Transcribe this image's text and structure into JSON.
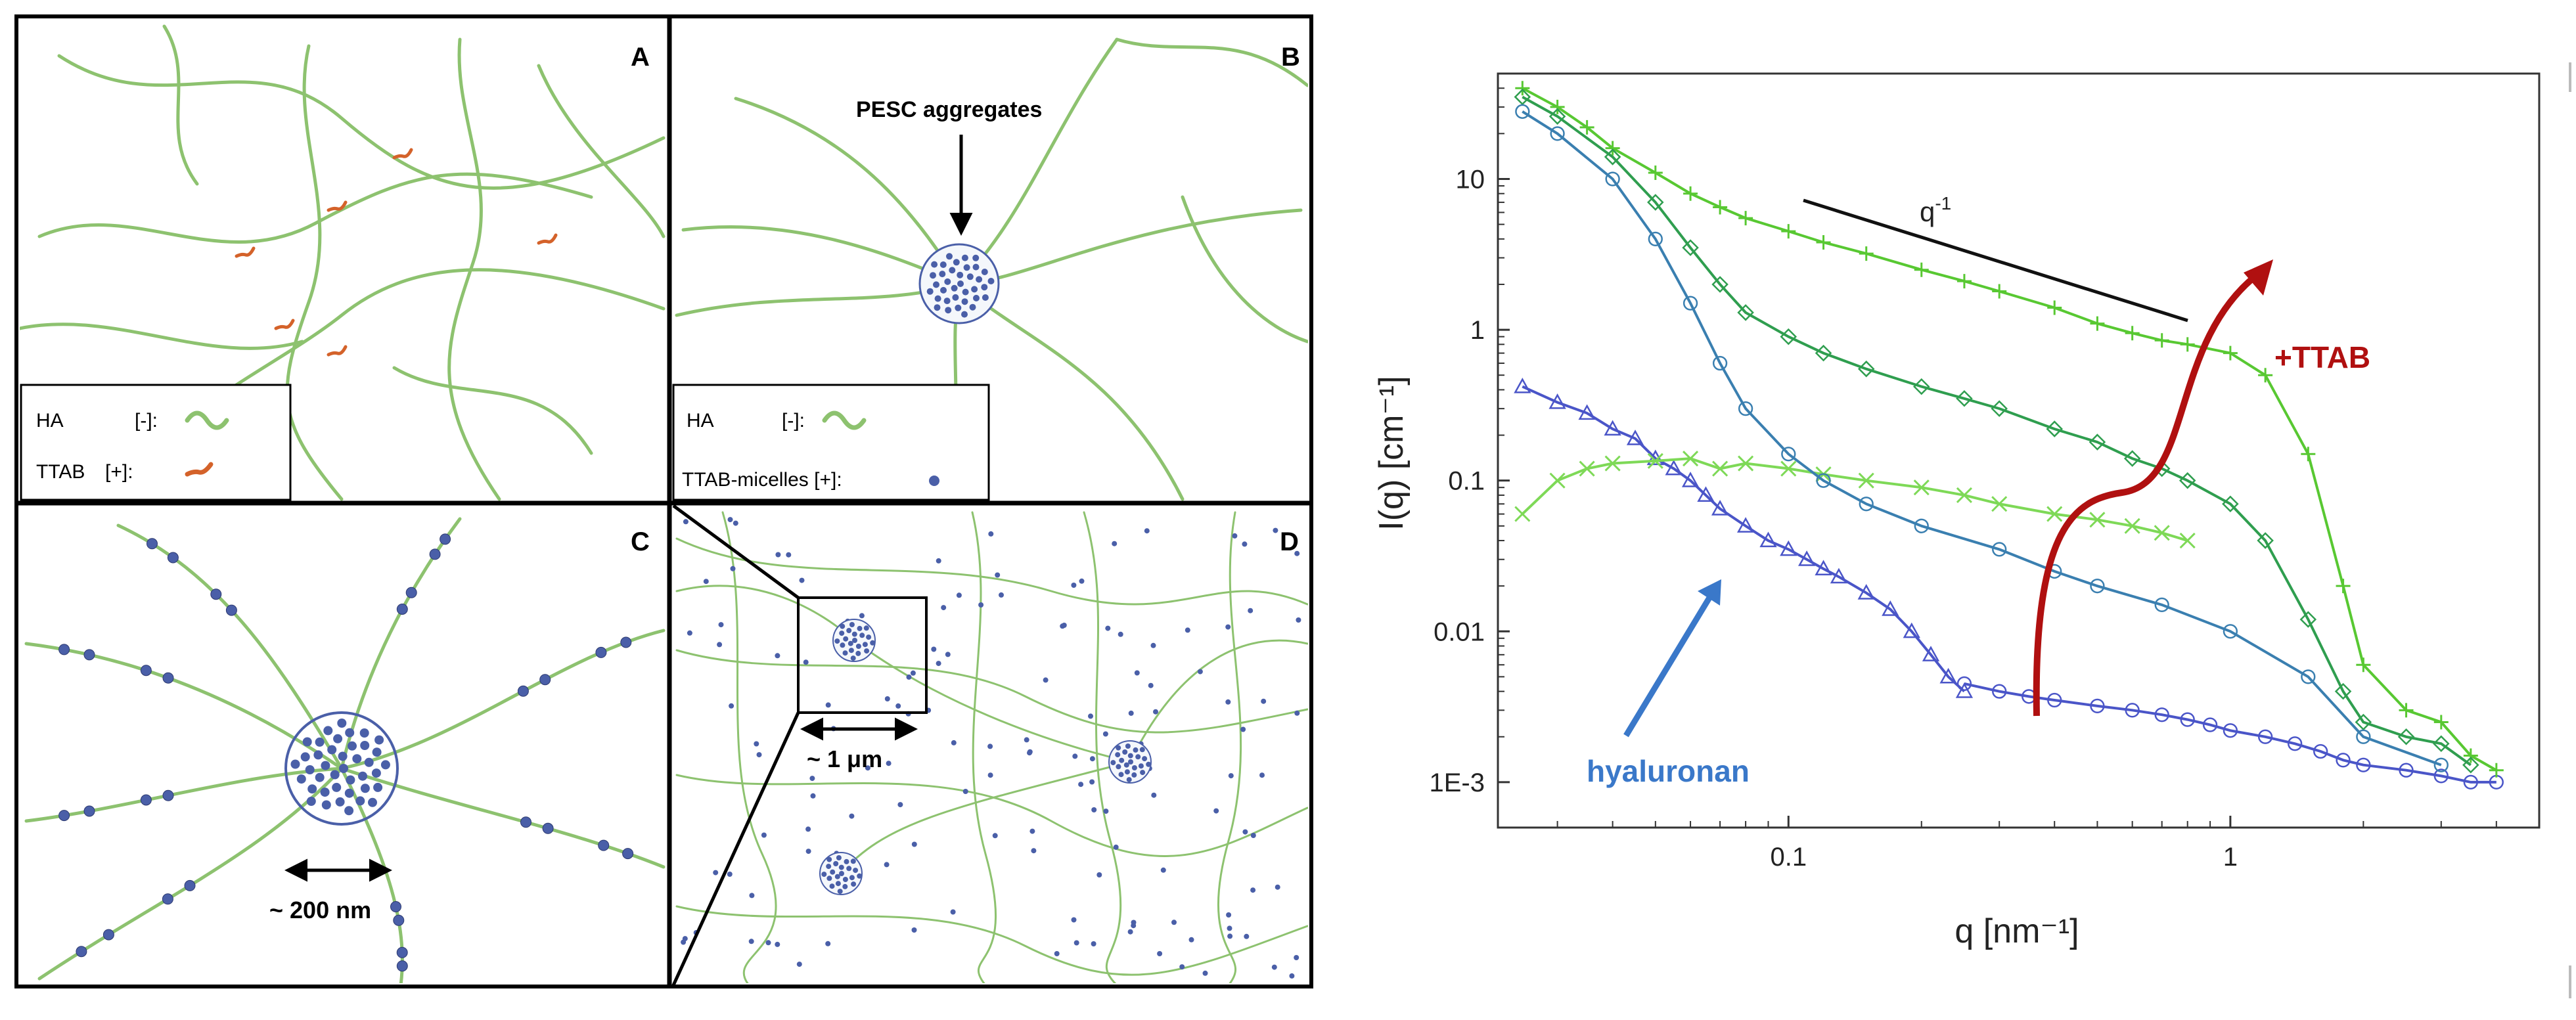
{
  "panels": {
    "A": {
      "letter": "A",
      "legend": {
        "ha_label": "HA",
        "ha_charge": "[-]:",
        "ttab_label": "TTAB",
        "ttab_charge": "[+]:"
      }
    },
    "B": {
      "letter": "B",
      "callout": "PESC aggregates",
      "legend": {
        "ha_label": "HA",
        "ha_charge": "[-]:",
        "micelle_label": "TTAB-micelles [+]:"
      }
    },
    "C": {
      "letter": "C",
      "scale_label": "~ 200 nm"
    },
    "D": {
      "letter": "D",
      "scale_label": "~ 1 μm"
    }
  },
  "colors": {
    "polymer": "#8dc26f",
    "ttab": "#d4622a",
    "micelle": "#4a5fa8",
    "bright_green": "#58c832",
    "mid_green": "#2f9e4f",
    "blue": "#4a55c8",
    "annotation_blue": "#3a78c9",
    "annotation_red": "#b01010"
  },
  "chart_data": {
    "type": "scatter",
    "xlabel": "q [nm⁻¹]",
    "ylabel": "I(q) [cm⁻¹]",
    "x_scale": "log",
    "y_scale": "log",
    "xlim": [
      0.022,
      5
    ],
    "ylim": [
      0.0005,
      50
    ],
    "x_ticks": [
      {
        "value": 0.1,
        "label": "0.1"
      },
      {
        "value": 1,
        "label": "1"
      }
    ],
    "y_ticks": [
      {
        "value": 0.001,
        "label": "1E-3"
      },
      {
        "value": 0.01,
        "label": "0.01"
      },
      {
        "value": 0.1,
        "label": "0.1"
      },
      {
        "value": 1,
        "label": "1"
      },
      {
        "value": 10,
        "label": "10"
      }
    ],
    "annotations": {
      "slope": "q",
      "slope_exp": "-1",
      "ttab": "+TTAB",
      "hyaluronan": "hyaluronan"
    },
    "series": [
      {
        "color": "#4a55c8",
        "marker": "triangle",
        "points": [
          [
            0.025,
            0.42
          ],
          [
            0.03,
            0.33
          ],
          [
            0.035,
            0.28
          ],
          [
            0.04,
            0.22
          ],
          [
            0.045,
            0.19
          ],
          [
            0.05,
            0.14
          ],
          [
            0.055,
            0.12
          ],
          [
            0.06,
            0.1
          ],
          [
            0.065,
            0.08
          ],
          [
            0.07,
            0.065
          ],
          [
            0.08,
            0.05
          ],
          [
            0.09,
            0.04
          ],
          [
            0.1,
            0.035
          ],
          [
            0.11,
            0.03
          ],
          [
            0.12,
            0.026
          ],
          [
            0.13,
            0.023
          ],
          [
            0.15,
            0.018
          ],
          [
            0.17,
            0.014
          ],
          [
            0.19,
            0.01
          ],
          [
            0.21,
            0.007
          ],
          [
            0.23,
            0.005
          ],
          [
            0.25,
            0.004
          ]
        ]
      },
      {
        "color": "#4a55c8",
        "marker": "circle",
        "points": [
          [
            0.25,
            0.0045
          ],
          [
            0.3,
            0.004
          ],
          [
            0.35,
            0.0037
          ],
          [
            0.4,
            0.0035
          ],
          [
            0.5,
            0.0032
          ],
          [
            0.6,
            0.003
          ],
          [
            0.7,
            0.0028
          ],
          [
            0.8,
            0.0026
          ],
          [
            0.9,
            0.0024
          ],
          [
            1.0,
            0.0022
          ],
          [
            1.2,
            0.002
          ],
          [
            1.4,
            0.0018
          ],
          [
            1.6,
            0.0016
          ],
          [
            1.8,
            0.0014
          ],
          [
            2.0,
            0.0013
          ],
          [
            2.5,
            0.0012
          ],
          [
            3.0,
            0.0011
          ],
          [
            3.5,
            0.001
          ],
          [
            4.0,
            0.001
          ]
        ]
      },
      {
        "color": "#7ed957",
        "marker": "x",
        "points": [
          [
            0.025,
            0.06
          ],
          [
            0.03,
            0.1
          ],
          [
            0.035,
            0.12
          ],
          [
            0.04,
            0.13
          ],
          [
            0.05,
            0.135
          ],
          [
            0.06,
            0.14
          ],
          [
            0.07,
            0.12
          ],
          [
            0.08,
            0.13
          ],
          [
            0.1,
            0.12
          ],
          [
            0.12,
            0.11
          ],
          [
            0.15,
            0.1
          ],
          [
            0.2,
            0.09
          ],
          [
            0.25,
            0.08
          ],
          [
            0.3,
            0.07
          ],
          [
            0.4,
            0.06
          ],
          [
            0.5,
            0.055
          ],
          [
            0.6,
            0.05
          ],
          [
            0.7,
            0.045
          ],
          [
            0.8,
            0.04
          ]
        ]
      },
      {
        "color": "#58c832",
        "marker": "plus",
        "points": [
          [
            0.025,
            40
          ],
          [
            0.03,
            30
          ],
          [
            0.035,
            22
          ],
          [
            0.04,
            16
          ],
          [
            0.05,
            11
          ],
          [
            0.06,
            8
          ],
          [
            0.07,
            6.5
          ],
          [
            0.08,
            5.5
          ],
          [
            0.1,
            4.5
          ],
          [
            0.12,
            3.8
          ],
          [
            0.15,
            3.2
          ],
          [
            0.2,
            2.5
          ],
          [
            0.25,
            2.1
          ],
          [
            0.3,
            1.8
          ],
          [
            0.4,
            1.4
          ],
          [
            0.5,
            1.1
          ],
          [
            0.6,
            0.95
          ],
          [
            0.7,
            0.85
          ],
          [
            0.8,
            0.8
          ],
          [
            1.0,
            0.7
          ],
          [
            1.2,
            0.5
          ],
          [
            1.5,
            0.15
          ],
          [
            1.8,
            0.02
          ],
          [
            2.0,
            0.006
          ],
          [
            2.5,
            0.003
          ],
          [
            3.0,
            0.0025
          ],
          [
            3.5,
            0.0015
          ],
          [
            4.0,
            0.0012
          ]
        ]
      },
      {
        "color": "#2f9e4f",
        "marker": "diamond",
        "points": [
          [
            0.025,
            35
          ],
          [
            0.03,
            26
          ],
          [
            0.04,
            14
          ],
          [
            0.05,
            7
          ],
          [
            0.06,
            3.5
          ],
          [
            0.07,
            2
          ],
          [
            0.08,
            1.3
          ],
          [
            0.1,
            0.9
          ],
          [
            0.12,
            0.7
          ],
          [
            0.15,
            0.55
          ],
          [
            0.2,
            0.42
          ],
          [
            0.25,
            0.35
          ],
          [
            0.3,
            0.3
          ],
          [
            0.4,
            0.22
          ],
          [
            0.5,
            0.18
          ],
          [
            0.6,
            0.14
          ],
          [
            0.7,
            0.12
          ],
          [
            0.8,
            0.1
          ],
          [
            1.0,
            0.07
          ],
          [
            1.2,
            0.04
          ],
          [
            1.5,
            0.012
          ],
          [
            1.8,
            0.004
          ],
          [
            2.0,
            0.0025
          ],
          [
            2.5,
            0.002
          ],
          [
            3.0,
            0.0018
          ],
          [
            3.5,
            0.0013
          ]
        ]
      },
      {
        "color": "#3a7fb0",
        "marker": "circle",
        "points": [
          [
            0.025,
            28
          ],
          [
            0.03,
            20
          ],
          [
            0.04,
            10
          ],
          [
            0.05,
            4
          ],
          [
            0.06,
            1.5
          ],
          [
            0.07,
            0.6
          ],
          [
            0.08,
            0.3
          ],
          [
            0.1,
            0.15
          ],
          [
            0.12,
            0.1
          ],
          [
            0.15,
            0.07
          ],
          [
            0.2,
            0.05
          ],
          [
            0.3,
            0.035
          ],
          [
            0.4,
            0.025
          ],
          [
            0.5,
            0.02
          ],
          [
            0.7,
            0.015
          ],
          [
            1.0,
            0.01
          ],
          [
            1.5,
            0.005
          ],
          [
            2.0,
            0.002
          ],
          [
            3.0,
            0.0013
          ]
        ]
      }
    ]
  }
}
